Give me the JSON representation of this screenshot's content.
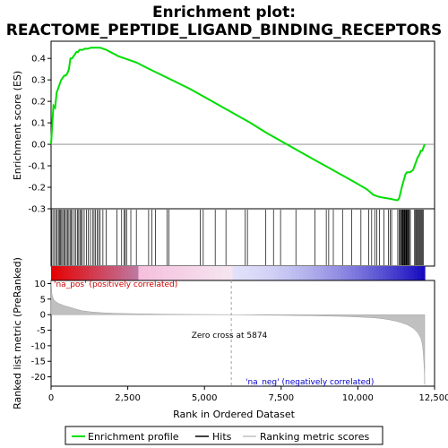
{
  "chart_data": {
    "type": "line",
    "title_line1": "Enrichment plot:",
    "title_line2": "REACTOME_PEPTIDE_LIGAND_BINDING_RECEPTORS",
    "top_panel": {
      "ylabel": "Enrichment score (ES)",
      "ylim": [
        -0.3,
        0.48
      ],
      "yticks": [
        -0.3,
        -0.2,
        -0.1,
        0.0,
        0.1,
        0.2,
        0.3,
        0.4
      ],
      "ytick_labels": [
        "-0.3",
        "-0.2",
        "-0.1",
        "0.0",
        "0.1",
        "0.2",
        "0.3",
        "0.4"
      ],
      "grid": false,
      "series": [
        {
          "name": "Enrichment profile",
          "color": "#00dd00",
          "x": [
            0,
            40,
            80,
            130,
            180,
            230,
            280,
            330,
            380,
            430,
            480,
            530,
            580,
            630,
            680,
            730,
            780,
            830,
            880,
            930,
            980,
            1030,
            1100,
            1200,
            1300,
            1400,
            1500,
            1600,
            1700,
            1800,
            2000,
            2200,
            2400,
            2600,
            2800,
            3000,
            3500,
            4000,
            4500,
            5000,
            5500,
            6000,
            6500,
            7000,
            7500,
            8000,
            8500,
            9000,
            9500,
            10000,
            10300,
            10500,
            10700,
            10900,
            11100,
            11250,
            11300,
            11350,
            11400,
            11450,
            11500,
            11550,
            11600,
            11650,
            11700,
            11800,
            11850,
            11900,
            11950,
            12000,
            12050,
            12100,
            12150,
            12180
          ],
          "y": [
            0.0,
            0.1,
            0.18,
            0.17,
            0.24,
            0.26,
            0.28,
            0.3,
            0.31,
            0.32,
            0.32,
            0.33,
            0.35,
            0.4,
            0.4,
            0.41,
            0.42,
            0.43,
            0.43,
            0.44,
            0.44,
            0.44,
            0.445,
            0.445,
            0.45,
            0.45,
            0.45,
            0.45,
            0.445,
            0.44,
            0.425,
            0.41,
            0.4,
            0.39,
            0.38,
            0.365,
            0.33,
            0.295,
            0.26,
            0.22,
            0.18,
            0.14,
            0.1,
            0.055,
            0.015,
            -0.025,
            -0.065,
            -0.105,
            -0.145,
            -0.185,
            -0.21,
            -0.235,
            -0.245,
            -0.25,
            -0.255,
            -0.26,
            -0.26,
            -0.25,
            -0.22,
            -0.19,
            -0.165,
            -0.14,
            -0.13,
            -0.13,
            -0.13,
            -0.12,
            -0.1,
            -0.08,
            -0.06,
            -0.05,
            -0.03,
            -0.03,
            -0.01,
            0.0
          ]
        }
      ]
    },
    "hits_panel": {
      "hit_positions": [
        15,
        60,
        110,
        160,
        200,
        240,
        280,
        310,
        345,
        380,
        420,
        460,
        500,
        540,
        580,
        620,
        660,
        700,
        760,
        810,
        860,
        900,
        940,
        980,
        1020,
        1080,
        1150,
        1210,
        1280,
        1350,
        1400,
        1450,
        1500,
        1550,
        1600,
        1690,
        1800,
        2150,
        2300,
        2380,
        2420,
        2460,
        2600,
        2780,
        3180,
        3290,
        3400,
        3780,
        3840,
        4860,
        4960,
        5350,
        5700,
        6330,
        6400,
        7000,
        7250,
        7480,
        7980,
        8600,
        8970,
        9050,
        9200,
        9500,
        9800,
        10100,
        10350,
        10450,
        10550,
        10620,
        10700,
        10850,
        11000,
        11050,
        11100,
        11300,
        11350,
        11380,
        11410,
        11430,
        11450,
        11470,
        11490,
        11510,
        11530,
        11550,
        11570,
        11590,
        11610,
        11630,
        11650,
        11680,
        11710,
        11850,
        11880,
        11900,
        11930,
        11960,
        11990,
        12020,
        12050,
        12080,
        12110,
        12140
      ],
      "color_bar": "red-to-blue ranked gradient"
    },
    "bottom_panel": {
      "ylabel": "Ranked list metric (PreRanked)",
      "xlabel": "Rank in Ordered Dataset",
      "xlim": [
        0,
        12500
      ],
      "xticks": [
        0,
        2500,
        5000,
        7500,
        10000,
        12500
      ],
      "xtick_labels": [
        "0",
        "2,500",
        "5,000",
        "7,500",
        "10,000",
        "12,500"
      ],
      "ylim": [
        -23,
        11
      ],
      "yticks": [
        -20,
        -15,
        -10,
        -5,
        0,
        5,
        10
      ],
      "ytick_labels": [
        "-20",
        "-15",
        "-10",
        "-5",
        "0",
        "5",
        "10"
      ],
      "series_x": [
        0,
        30,
        80,
        150,
        250,
        400,
        600,
        800,
        1000,
        1300,
        1700,
        2200,
        3000,
        4000,
        5000,
        5874,
        6500,
        7500,
        8500,
        9500,
        10000,
        10500,
        10800,
        11000,
        11200,
        11400,
        11600,
        11800,
        11950,
        12050,
        12100,
        12130,
        12150,
        12170,
        12180
      ],
      "series_y": [
        11,
        6.5,
        5.0,
        4.2,
        3.6,
        3.0,
        2.4,
        1.8,
        1.3,
        0.9,
        0.6,
        0.4,
        0.25,
        0.12,
        0.05,
        0.0,
        -0.08,
        -0.2,
        -0.35,
        -0.55,
        -0.75,
        -1.0,
        -1.3,
        -1.6,
        -2.0,
        -2.5,
        -3.2,
        -4.3,
        -5.8,
        -7.5,
        -9.5,
        -12.0,
        -15.0,
        -19.0,
        -22.5
      ],
      "zero_cross_label": "Zero cross at 5874",
      "zero_cross_x": 5874,
      "pos_label": "'na_pos' (positively correlated)",
      "neg_label": "'na_neg' (negatively correlated)"
    },
    "legend": {
      "items": [
        {
          "label": "Enrichment profile",
          "color": "#00dd00"
        },
        {
          "label": "Hits",
          "color": "#000000"
        },
        {
          "label": "Ranking metric scores",
          "color": "#c0c0c0"
        }
      ]
    }
  }
}
